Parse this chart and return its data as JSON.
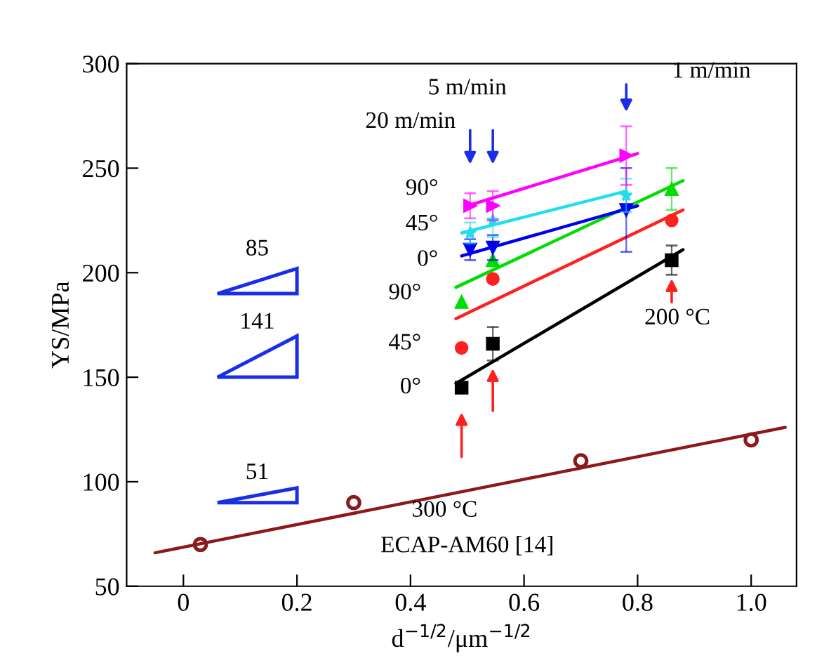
{
  "chart_data": {
    "type": "scatter",
    "xlabel": "d$^{−1/2}$/μm$^{−1/2}$",
    "ylabel": "YS/MPa",
    "xlim": [
      -0.1,
      1.08
    ],
    "ylim": [
      50,
      300
    ],
    "xticks": [
      0,
      0.2,
      0.4,
      0.6,
      0.8,
      {
        "value": 1.0,
        "label": "1.0"
      }
    ],
    "yticks": [
      50,
      100,
      150,
      200,
      250,
      300
    ],
    "grid": false,
    "legend": false,
    "series": [
      {
        "type": "line",
        "color": "#8b1a1a",
        "marker": "none",
        "x": [
          -0.05,
          1.06
        ],
        "values": [
          66,
          126
        ]
      },
      {
        "color": "#8b1a1a",
        "marker": "circle",
        "x": [
          0.03,
          0.3,
          0.7,
          1.0
        ],
        "values": [
          70,
          90,
          110,
          120
        ]
      },
      {
        "type": "line",
        "color": "#000000",
        "marker": "none",
        "x": [
          0.48,
          0.88
        ],
        "values": [
          147,
          211
        ]
      },
      {
        "color": "#000000",
        "marker": "square",
        "x": [
          0.49,
          0.545,
          0.86
        ],
        "values": [
          145,
          166,
          206
        ],
        "errors": [
          null,
          8,
          7
        ]
      },
      {
        "type": "line",
        "color": "#ff2020",
        "marker": "none",
        "x": [
          0.48,
          0.88
        ],
        "values": [
          178,
          230
        ]
      },
      {
        "color": "#ff2020",
        "marker": "circle",
        "x": [
          0.49,
          0.545,
          0.86
        ],
        "values": [
          164,
          197,
          225
        ]
      },
      {
        "type": "line",
        "color": "#00dd00",
        "marker": "none",
        "x": [
          0.48,
          0.88
        ],
        "values": [
          193,
          244
        ]
      },
      {
        "color": "#00dd00",
        "marker": "triangle",
        "x": [
          0.49,
          0.545,
          0.86
        ],
        "values": [
          186,
          206,
          240
        ],
        "errors": [
          null,
          null,
          10
        ]
      },
      {
        "type": "line",
        "color": "#0000ee",
        "marker": "none",
        "x": [
          0.49,
          0.8
        ],
        "values": [
          208,
          232
        ]
      },
      {
        "color": "#0000ee",
        "marker": "triangle-down",
        "x": [
          0.505,
          0.545,
          0.78
        ],
        "values": [
          211,
          212,
          230
        ],
        "errors": [
          5,
          6,
          20
        ]
      },
      {
        "type": "line",
        "color": "#22ddee",
        "marker": "none",
        "x": [
          0.49,
          0.78
        ],
        "values": [
          219,
          239
        ]
      },
      {
        "color": "#22ddee",
        "marker": "star",
        "x": [
          0.505,
          0.545,
          0.78
        ],
        "values": [
          219,
          225,
          237
        ],
        "errors": [
          5,
          8,
          8
        ]
      },
      {
        "type": "line",
        "color": "#ff00ff",
        "marker": "none",
        "x": [
          0.5,
          0.8
        ],
        "values": [
          232,
          257
        ]
      },
      {
        "color": "#ff00ff",
        "marker": "triangle-right",
        "x": [
          0.505,
          0.545,
          0.78
        ],
        "values": [
          232,
          232,
          256
        ],
        "errors": [
          6,
          7,
          14
        ]
      }
    ],
    "annotations": [
      "5 m/min",
      "1 m/min",
      "20 m/min",
      "90°",
      "45°",
      "0°",
      "90°",
      "45°",
      "0°",
      "200 °C",
      "300 °C",
      "85",
      "141",
      "51",
      "ECAP-AM60 [14]"
    ]
  }
}
